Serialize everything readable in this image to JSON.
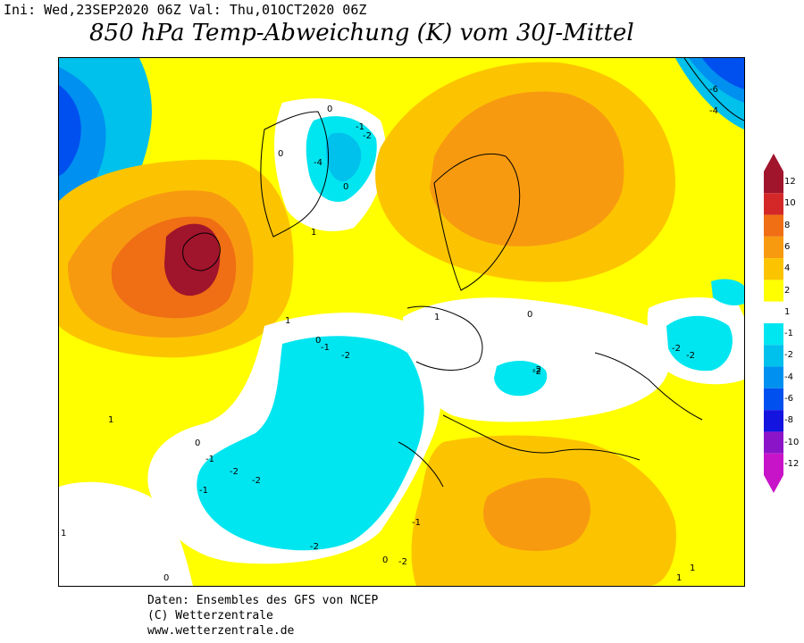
{
  "header": {
    "ini_label": "Ini:",
    "ini_value": "Wed,23SEP2020 06Z",
    "val_label": "Val:",
    "val_value": "Thu,01OCT2020 06Z",
    "title": "850 hPa Temp-Abweichung (K) vom 30J-Mittel"
  },
  "legend": {
    "labels": [
      "12",
      "10",
      "8",
      "6",
      "4",
      "2",
      "1",
      "-1",
      "-2",
      "-4",
      "-6",
      "-8",
      "-10",
      "-12"
    ],
    "colors": [
      "#a0142c",
      "#d42828",
      "#f06e14",
      "#f89a10",
      "#fcc400",
      "#ffff00",
      "#ffffff",
      "#00e6f0",
      "#00c0ec",
      "#0090f0",
      "#0050f0",
      "#1414e0",
      "#8c14c8",
      "#c814c8"
    ]
  },
  "map": {
    "contour_labels": [
      "-6",
      "-4",
      "0",
      "-1",
      "-2",
      "-4",
      "0",
      "0",
      "1",
      "1",
      "0",
      "-1",
      "-2",
      "-2",
      "1",
      "0",
      "-2",
      "-2",
      "-2",
      "-1",
      "-2",
      "0",
      "-1",
      "-1",
      "0",
      "-2",
      "-2",
      "1",
      "1",
      "1",
      "0",
      "-2",
      "1"
    ]
  },
  "credits": {
    "line1": "Daten: Ensembles des GFS von NCEP",
    "line2": "(C) Wetterzentrale",
    "line3": "www.wetterzentrale.de"
  }
}
